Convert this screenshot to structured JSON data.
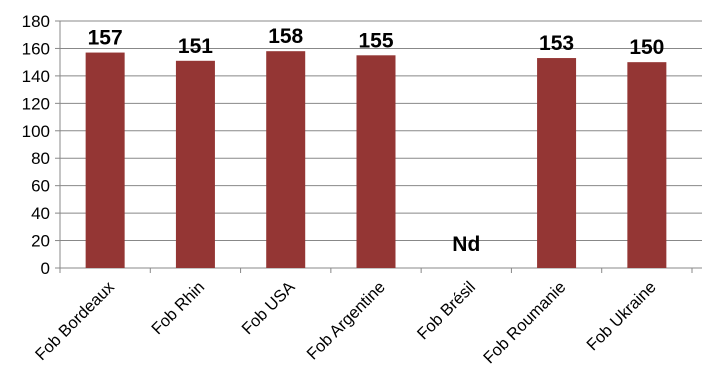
{
  "chart_data": {
    "type": "bar",
    "categories": [
      "Fob Bordeaux",
      "Fob Rhin",
      "Fob USA",
      "Fob Argentine",
      "Fob Brésil",
      "Fob Roumanie",
      "Fob Ukraine"
    ],
    "values": [
      157,
      151,
      158,
      155,
      null,
      153,
      150
    ],
    "data_labels": [
      "157",
      "151",
      "158",
      "155",
      "Nd",
      "153",
      "150"
    ],
    "ylim": [
      0,
      180
    ],
    "yticks": [
      "0",
      "20",
      "40",
      "60",
      "80",
      "100",
      "120",
      "140",
      "160",
      "180"
    ],
    "grid": true,
    "bar_color": "#943634",
    "grid_color": "#888888",
    "axis_color": "#888888"
  }
}
